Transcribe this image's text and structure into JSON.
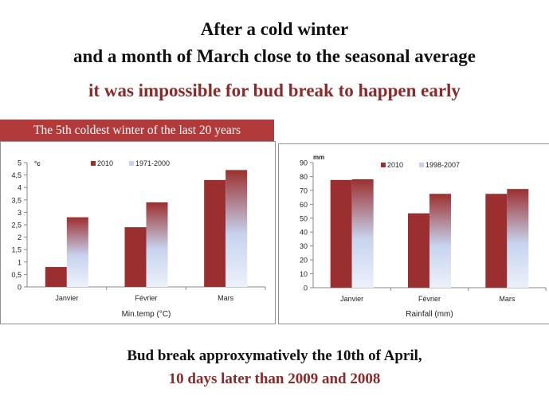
{
  "header": {
    "line1": "After a cold winter",
    "line2": "and a month of March close to the seasonal average",
    "line3": "it was impossible for bud break to happen early"
  },
  "banner": {
    "text": "The 5th coldest winter of the last 20 years"
  },
  "footer": {
    "line1": "Bud break approxymatively the 10th of April,",
    "line2": "10 days later than 2009 and 2008"
  },
  "colors": {
    "series_2010": "#9b2f2f",
    "series_avg_top": "#9b2f2f",
    "series_avg_bottom": "#ecf1fb",
    "accent_text": "#8b2a2a",
    "banner": "#b23a3a"
  },
  "chart_data": [
    {
      "type": "bar",
      "title": "",
      "unit_label": "°c",
      "xlabel": "Min.temp (°C)",
      "ylabel": "",
      "categories": [
        "Janvier",
        "Février",
        "Mars"
      ],
      "series": [
        {
          "name": "2010",
          "values": [
            0.8,
            2.4,
            4.3
          ]
        },
        {
          "name": "1971-2000",
          "values": [
            2.8,
            3.4,
            4.7
          ]
        }
      ],
      "ylim": [
        0,
        5
      ],
      "yticks": [
        "0",
        "0,5",
        "1",
        "1,5",
        "2",
        "2,5",
        "3",
        "3,5",
        "4",
        "4,5",
        "5"
      ],
      "grid": false,
      "legend": "top"
    },
    {
      "type": "bar",
      "title": "",
      "unit_label": "mm",
      "xlabel": "Rainfall (mm)",
      "ylabel": "",
      "categories": [
        "Janvier",
        "Février",
        "Mars"
      ],
      "series": [
        {
          "name": "2010",
          "values": [
            77.5,
            53.5,
            67.5
          ]
        },
        {
          "name": "1998-2007",
          "values": [
            78,
            67.5,
            71
          ]
        }
      ],
      "ylim": [
        0,
        90
      ],
      "yticks": [
        "0",
        "10",
        "20",
        "30",
        "40",
        "50",
        "60",
        "70",
        "80",
        "90"
      ],
      "grid": false,
      "legend": "top"
    }
  ]
}
